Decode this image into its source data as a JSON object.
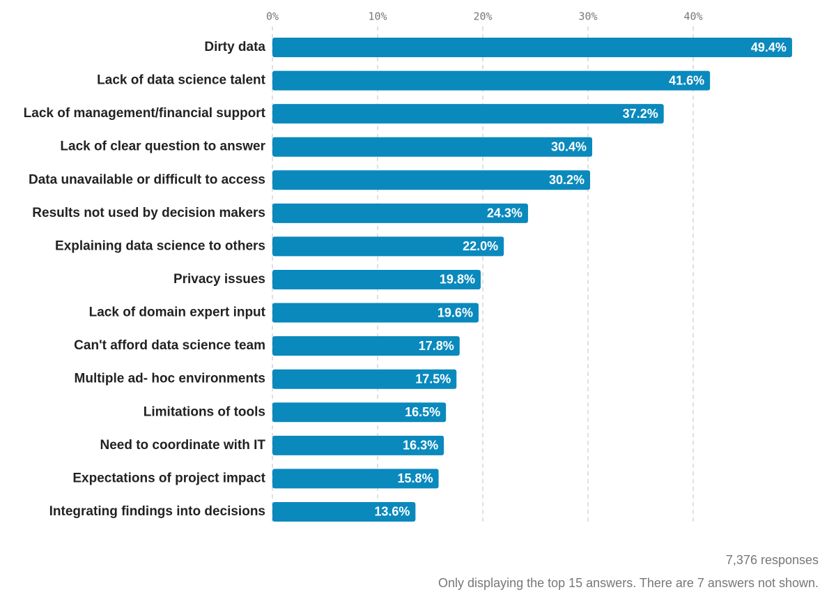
{
  "chart_data": {
    "type": "bar",
    "orientation": "horizontal",
    "categories": [
      "Dirty data",
      "Lack of data science talent",
      "Lack of management/financial support",
      "Lack of clear question to answer",
      "Data unavailable or difficult to access",
      "Results not used by decision makers",
      "Explaining data science to others",
      "Privacy issues",
      "Lack of domain expert input",
      "Can't afford data science team",
      "Multiple ad- hoc environments",
      "Limitations of tools",
      "Need to coordinate with IT",
      "Expectations of project impact",
      "Integrating findings into decisions"
    ],
    "values": [
      49.4,
      41.6,
      37.2,
      30.4,
      30.2,
      24.3,
      22.0,
      19.8,
      19.6,
      17.8,
      17.5,
      16.5,
      16.3,
      15.8,
      13.6
    ],
    "value_labels": [
      "49.4%",
      "41.6%",
      "37.2%",
      "30.4%",
      "30.2%",
      "24.3%",
      "22.0%",
      "19.8%",
      "19.6%",
      "17.8%",
      "17.5%",
      "16.5%",
      "16.3%",
      "15.8%",
      "13.6%"
    ],
    "color": "#0a89bd",
    "xlim": [
      0,
      50
    ],
    "xticks": [
      {
        "value": 0,
        "label": "0%"
      },
      {
        "value": 10,
        "label": "10%"
      },
      {
        "value": 20,
        "label": "20%"
      },
      {
        "value": 30,
        "label": "30%"
      },
      {
        "value": 40,
        "label": "40%"
      }
    ],
    "grid": true,
    "footer": [
      "7,376 responses",
      "Only displaying the top 15 answers. There are 7 answers not shown."
    ]
  }
}
